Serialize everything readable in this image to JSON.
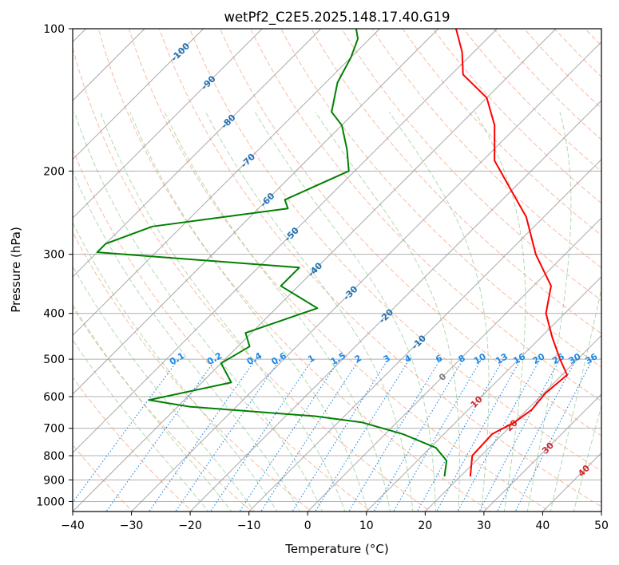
{
  "chart_data": {
    "type": "line",
    "title": "wetPf2_C2E5.2025.148.17.40.G19",
    "xlabel": "Temperature (°C)",
    "ylabel": "Pressure (hPa)",
    "xlim": [
      -40,
      50
    ],
    "ylim": [
      1050,
      100
    ],
    "yscale": "log",
    "skew": "skew-T log-p",
    "grid": true,
    "x_ticks": [
      -40,
      -30,
      -20,
      -10,
      0,
      10,
      20,
      30,
      40,
      50
    ],
    "y_ticks": [
      100,
      200,
      300,
      400,
      500,
      600,
      700,
      800,
      900,
      1000
    ],
    "colors": {
      "temperature": "#ff0000",
      "dewpoint": "#008000",
      "dry_adiabats": "#f4a582",
      "moist_adiabats": "#7fbf7f",
      "mixing_ratio": "#1e88e5",
      "isotherm_labels_cold": "#1f6fb2",
      "isotherm_labels_warm": "#d62728",
      "grid": "#b0b0b0"
    },
    "series": [
      {
        "key": "temperature",
        "points": [
          {
            "p": 885,
            "t": 21.7
          },
          {
            "p": 800,
            "t": 18.5
          },
          {
            "p": 720,
            "t": 18.2
          },
          {
            "p": 680,
            "t": 20.0
          },
          {
            "p": 640,
            "t": 20.8
          },
          {
            "p": 590,
            "t": 20.3
          },
          {
            "p": 540,
            "t": 20.9
          },
          {
            "p": 500,
            "t": 17.0
          },
          {
            "p": 450,
            "t": 12.0
          },
          {
            "p": 400,
            "t": 6.8
          },
          {
            "p": 350,
            "t": 3.0
          },
          {
            "p": 300,
            "t": -5.0
          },
          {
            "p": 250,
            "t": -13.0
          },
          {
            "p": 220,
            "t": -20.0
          },
          {
            "p": 190,
            "t": -28.0
          },
          {
            "p": 160,
            "t": -34.0
          },
          {
            "p": 140,
            "t": -40.0
          },
          {
            "p": 125,
            "t": -48.0
          },
          {
            "p": 112,
            "t": -52.0
          },
          {
            "p": 100,
            "t": -57.0
          }
        ]
      },
      {
        "key": "dewpoint",
        "points": [
          {
            "p": 885,
            "t": 17.3
          },
          {
            "p": 820,
            "t": 15.0
          },
          {
            "p": 770,
            "t": 11.0
          },
          {
            "p": 720,
            "t": 3.0
          },
          {
            "p": 680,
            "t": -6.0
          },
          {
            "p": 660,
            "t": -15.0
          },
          {
            "p": 630,
            "t": -38.0
          },
          {
            "p": 610,
            "t": -46.0
          },
          {
            "p": 560,
            "t": -35.0
          },
          {
            "p": 510,
            "t": -40.0
          },
          {
            "p": 470,
            "t": -38.0
          },
          {
            "p": 440,
            "t": -41.0
          },
          {
            "p": 390,
            "t": -33.0
          },
          {
            "p": 350,
            "t": -43.0
          },
          {
            "p": 320,
            "t": -43.0
          },
          {
            "p": 297,
            "t": -80.0
          },
          {
            "p": 285,
            "t": -80.0
          },
          {
            "p": 262,
            "t": -75.0
          },
          {
            "p": 240,
            "t": -55.0
          },
          {
            "p": 230,
            "t": -57.0
          },
          {
            "p": 200,
            "t": -51.0
          },
          {
            "p": 180,
            "t": -55.0
          },
          {
            "p": 160,
            "t": -60.0
          },
          {
            "p": 150,
            "t": -64.0
          },
          {
            "p": 130,
            "t": -68.0
          },
          {
            "p": 115,
            "t": -70.0
          },
          {
            "p": 105,
            "t": -72.0
          },
          {
            "p": 100,
            "t": -74.0
          }
        ]
      }
    ],
    "isotherm_labels": [
      "-100",
      "-90",
      "-80",
      "-70",
      "-60",
      "-50",
      "-40",
      "-30",
      "-20",
      "-10",
      "0",
      "10",
      "20",
      "30",
      "40"
    ],
    "isotherm_label_values": [
      -100,
      -90,
      -80,
      -70,
      -60,
      -50,
      -40,
      -30,
      -20,
      -10,
      0,
      10,
      20,
      30,
      40
    ],
    "mixing_ratio_labels": [
      "0.1",
      "0.2",
      "0.4",
      "0.6",
      "1",
      "1.5",
      "2",
      "3",
      "4",
      "6",
      "8",
      "10",
      "13",
      "16",
      "20",
      "25",
      "30",
      "36"
    ],
    "mixing_ratio_values": [
      0.1,
      0.2,
      0.4,
      0.6,
      1,
      1.5,
      2,
      3,
      4,
      6,
      8,
      10,
      13,
      16,
      20,
      25,
      30,
      36
    ]
  }
}
